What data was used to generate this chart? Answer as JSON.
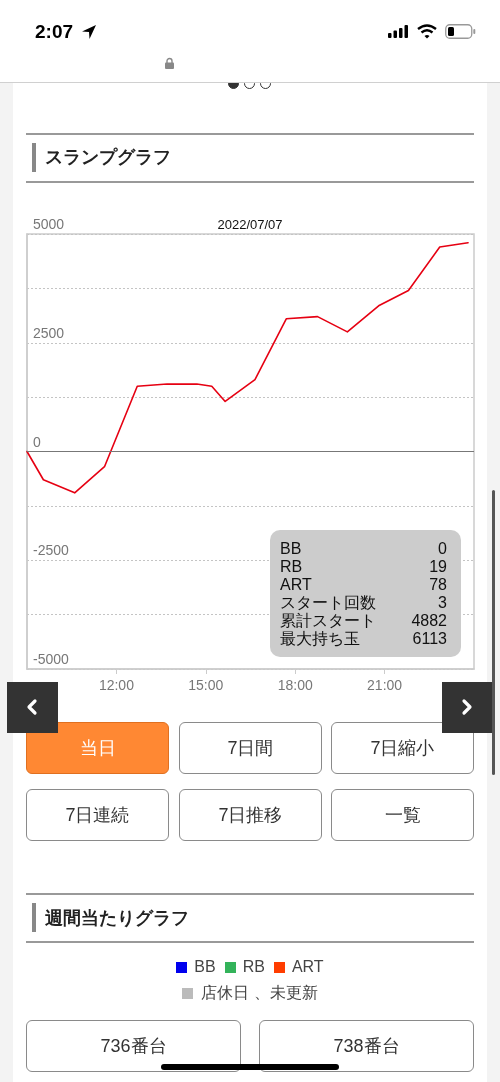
{
  "chart_data": {
    "type": "line",
    "title": "スランプグラフ",
    "subtitle": "2022/07/07",
    "x": [
      9.0,
      9.55,
      10.6,
      11.6,
      12.7,
      13.7,
      14.7,
      15.2,
      15.65,
      16.65,
      17.7,
      18.75,
      19.75,
      20.8,
      21.8,
      22.85,
      23.8
    ],
    "series": [
      {
        "color": "#e60012",
        "values": [
          0,
          -650,
          -950,
          -350,
          1500,
          1550,
          1550,
          1500,
          1150,
          1650,
          3050,
          3100,
          2750,
          3350,
          3700,
          4700,
          4800
        ]
      }
    ],
    "xlim": [
      9,
      24
    ],
    "xticks": [
      {
        "value": 12,
        "label": "12:00"
      },
      {
        "value": 15,
        "label": "15:00"
      },
      {
        "value": 18,
        "label": "18:00"
      },
      {
        "value": 21,
        "label": "21:00"
      }
    ],
    "ylim": [
      -5000,
      5000
    ],
    "yticks": [
      -5000,
      {
        "value": -3750,
        "label": null
      },
      -2500,
      {
        "value": -1250,
        "label": null
      },
      0,
      {
        "value": 1250,
        "label": null
      },
      2500,
      {
        "value": 3750,
        "label": null
      },
      5000
    ],
    "grid": "y",
    "marker": "none",
    "line_style": "solid",
    "ref_lines": [
      {
        "axis": "y",
        "value": 0,
        "color": "#777777"
      }
    ],
    "annotations": [
      "2:07",
      "BB",
      "0",
      "RB",
      "19",
      "ART",
      "78",
      "スタート回数",
      "3",
      "累計スタート",
      "4882",
      "最大持ち玉",
      "6113",
      "当日",
      "7日間",
      "7日縮小",
      "7日連続",
      "7日推移",
      "一覧",
      "週間当たりグラフ",
      "BB",
      "RB",
      "ART",
      "店休日 、未更新",
      "736番台",
      "738番台"
    ]
  }
}
